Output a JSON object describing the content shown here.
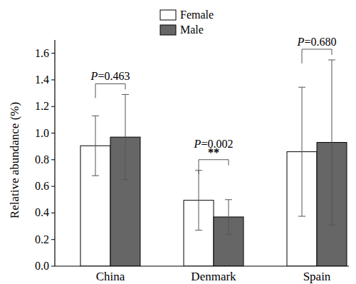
{
  "chart_data": {
    "type": "bar",
    "y_label": "Relative abundance (%)",
    "categories": [
      "China",
      "Denmark",
      "Spain"
    ],
    "series": [
      {
        "name": "Female",
        "color": "#ffffff",
        "values": [
          0.905,
          0.495,
          0.86
        ],
        "errors": [
          0.225,
          0.225,
          0.485
        ]
      },
      {
        "name": "Male",
        "color": "#666666",
        "values": [
          0.97,
          0.37,
          0.93
        ],
        "errors": [
          0.32,
          0.13,
          0.62
        ]
      }
    ],
    "ylim": [
      0,
      1.7
    ],
    "yticks": [
      {
        "value": 0,
        "label": "0.0"
      },
      {
        "value": 0.2,
        "label": "0.2"
      },
      {
        "value": 0.4,
        "label": "0.4"
      },
      {
        "value": 0.6,
        "label": "0.6"
      },
      {
        "value": 0.8,
        "label": "0.8"
      },
      {
        "value": 1,
        "label": "1.0"
      },
      {
        "value": 1.2,
        "label": "1.2"
      },
      {
        "value": 1.4,
        "label": "1.4"
      },
      {
        "value": 1.6,
        "label": "1.6"
      }
    ],
    "grid": false,
    "legend": "top",
    "annotations": [
      {
        "text": "P=0.463",
        "category": "China"
      },
      {
        "text": "P=0.002",
        "category": "Denmark"
      },
      {
        "text": "**",
        "category": "Denmark"
      },
      {
        "text": "P=0.680",
        "category": "Spain"
      }
    ]
  }
}
